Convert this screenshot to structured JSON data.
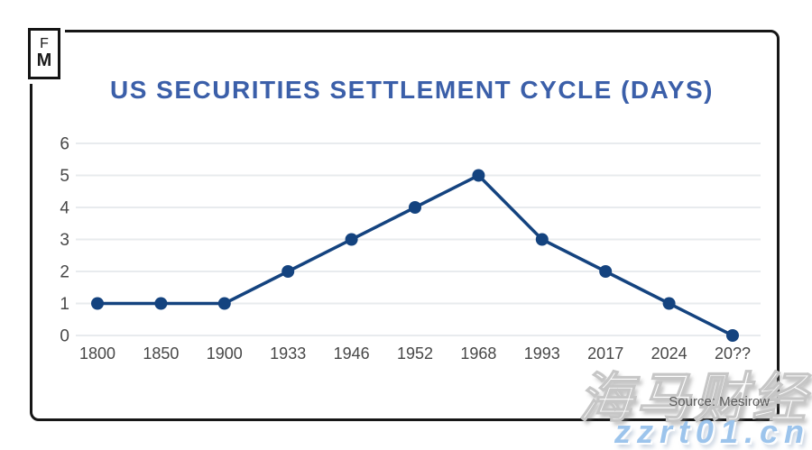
{
  "logo": {
    "line1": "F",
    "line2": "M"
  },
  "chart": {
    "title": "US SECURITIES SETTLEMENT CYCLE (DAYS)",
    "source": "Source: Mesirow"
  },
  "chart_data": {
    "type": "line",
    "categories": [
      "1800",
      "1850",
      "1900",
      "1933",
      "1946",
      "1952",
      "1968",
      "1993",
      "2017",
      "2024",
      "20??"
    ],
    "values": [
      1,
      1,
      1,
      2,
      3,
      4,
      5,
      3,
      2,
      1,
      0
    ],
    "title": "US SECURITIES SETTLEMENT CYCLE (DAYS)",
    "xlabel": "",
    "ylabel": "",
    "ylim": [
      0,
      6
    ],
    "yticks": [
      0,
      1,
      2,
      3,
      4,
      5,
      6
    ],
    "grid": true,
    "legend": false,
    "marker": "circle"
  },
  "watermarks": {
    "chinese": "海马财经",
    "site": "zzrt01.cn"
  },
  "colors": {
    "title": "#3B5FA9",
    "line": "#14437F",
    "grid": "#E8EBEE",
    "axis_text": "#474747",
    "source_text": "#5a5a5a",
    "border": "#161616",
    "watermark_site": "#9CC4EC"
  }
}
